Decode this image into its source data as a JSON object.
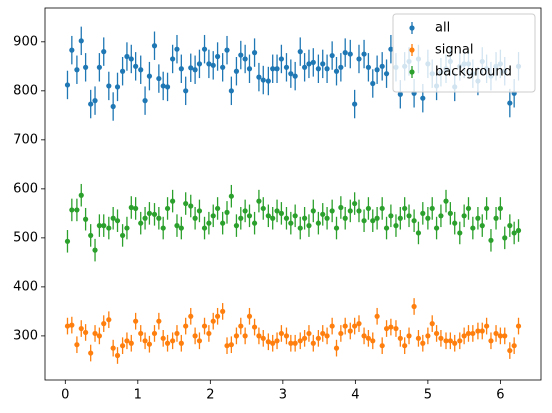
{
  "chart_data": {
    "type": "errorbar",
    "x": [
      0.03,
      0.09,
      0.16,
      0.22,
      0.28,
      0.35,
      0.41,
      0.47,
      0.53,
      0.6,
      0.66,
      0.72,
      0.79,
      0.85,
      0.91,
      0.97,
      1.04,
      1.1,
      1.16,
      1.23,
      1.29,
      1.35,
      1.41,
      1.48,
      1.54,
      1.6,
      1.66,
      1.73,
      1.79,
      1.85,
      1.92,
      1.98,
      2.04,
      2.1,
      2.17,
      2.23,
      2.29,
      2.36,
      2.42,
      2.48,
      2.54,
      2.61,
      2.67,
      2.73,
      2.8,
      2.86,
      2.92,
      2.98,
      3.05,
      3.11,
      3.17,
      3.24,
      3.3,
      3.36,
      3.42,
      3.49,
      3.55,
      3.61,
      3.68,
      3.74,
      3.8,
      3.86,
      3.93,
      3.99,
      4.05,
      4.12,
      4.18,
      4.24,
      4.3,
      4.37,
      4.43,
      4.49,
      4.56,
      4.62,
      4.68,
      4.74,
      4.81,
      4.87,
      4.93,
      5.0,
      5.06,
      5.12,
      5.18,
      5.25,
      5.31,
      5.37,
      5.44,
      5.5,
      5.56,
      5.62,
      5.69,
      5.75,
      5.81,
      5.87,
      5.94,
      6.0,
      6.06,
      6.13,
      6.19,
      6.25
    ],
    "series": [
      {
        "name": "all",
        "color": "#1f77b4",
        "yerr": 29,
        "values": [
          812,
          883,
          843,
          902,
          848,
          773,
          780,
          848,
          880,
          810,
          768,
          808,
          840,
          870,
          865,
          850,
          843,
          780,
          830,
          892,
          825,
          810,
          808,
          865,
          885,
          845,
          800,
          847,
          843,
          855,
          885,
          855,
          852,
          870,
          848,
          883,
          800,
          840,
          873,
          865,
          845,
          878,
          828,
          822,
          820,
          845,
          845,
          865,
          848,
          835,
          830,
          880,
          848,
          855,
          858,
          845,
          855,
          845,
          872,
          840,
          848,
          878,
          875,
          773,
          865,
          875,
          848,
          815,
          843,
          850,
          835,
          885,
          848,
          793,
          850,
          860,
          795,
          865,
          785,
          855,
          835,
          810,
          838,
          845,
          860,
          808,
          850,
          855,
          855,
          835,
          820,
          860,
          845,
          830,
          850,
          855,
          840,
          775,
          795,
          850
        ]
      },
      {
        "name": "signal",
        "color": "#ff7f0e",
        "yerr": 17,
        "values": [
          320,
          322,
          282,
          315,
          307,
          265,
          305,
          300,
          325,
          333,
          275,
          260,
          280,
          290,
          285,
          330,
          305,
          290,
          283,
          305,
          330,
          295,
          285,
          290,
          305,
          285,
          320,
          340,
          300,
          290,
          320,
          305,
          330,
          340,
          350,
          280,
          282,
          300,
          320,
          300,
          340,
          318,
          300,
          295,
          288,
          285,
          290,
          305,
          300,
          285,
          285,
          290,
          295,
          305,
          285,
          295,
          305,
          300,
          320,
          275,
          305,
          320,
          310,
          320,
          325,
          300,
          295,
          290,
          340,
          280,
          315,
          318,
          315,
          295,
          280,
          300,
          360,
          295,
          285,
          300,
          325,
          305,
          295,
          290,
          290,
          285,
          290,
          300,
          305,
          305,
          310,
          310,
          320,
          290,
          305,
          300,
          300,
          270,
          280,
          320
        ]
      },
      {
        "name": "background",
        "color": "#2ca02c",
        "yerr": 23,
        "values": [
          493,
          557,
          557,
          587,
          538,
          505,
          475,
          525,
          525,
          520,
          540,
          535,
          505,
          520,
          562,
          560,
          530,
          540,
          550,
          548,
          540,
          520,
          560,
          575,
          525,
          520,
          570,
          565,
          540,
          555,
          520,
          530,
          545,
          560,
          530,
          552,
          585,
          525,
          540,
          555,
          545,
          530,
          575,
          560,
          545,
          540,
          555,
          550,
          540,
          530,
          545,
          520,
          540,
          525,
          555,
          530,
          548,
          540,
          555,
          520,
          562,
          540,
          555,
          570,
          555,
          535,
          560,
          535,
          540,
          560,
          520,
          545,
          525,
          540,
          560,
          545,
          535,
          510,
          550,
          540,
          560,
          520,
          545,
          575,
          550,
          530,
          510,
          545,
          560,
          520,
          540,
          525,
          560,
          495,
          540,
          560,
          500,
          525,
          510,
          515
        ]
      }
    ],
    "xlim": [
      -0.28,
      6.56
    ],
    "ylim": [
      210,
      969
    ],
    "xticks": [
      0,
      1,
      2,
      3,
      4,
      5,
      6
    ],
    "yticks": [
      300,
      400,
      500,
      600,
      700,
      800,
      900
    ],
    "legend": "upper right",
    "grid": false
  }
}
